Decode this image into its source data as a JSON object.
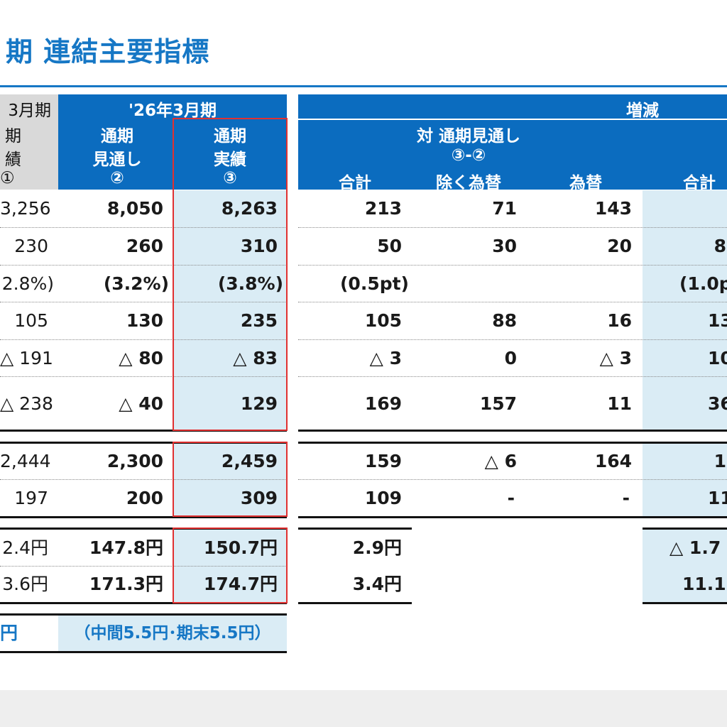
{
  "title": "期 連結主要指標",
  "header": {
    "prev_col": [
      "3月期",
      "期",
      "績",
      "①"
    ],
    "fy26_label": "'26年3月期",
    "forecast_label_1": "通期",
    "forecast_label_2": "見通し",
    "forecast_label_3": "②",
    "actual_label_1": "通期",
    "actual_label_2": "実績",
    "actual_label_3": "③",
    "change_label": "増減",
    "vs_forecast_label": "対 通期見通し",
    "vs_forecast_formula": "③-②",
    "sub_total": "合計",
    "sub_ex_fx": "除く為替",
    "sub_fx": "為替",
    "sub_total_right": "合計"
  },
  "rows": [
    {
      "prev": "3,256",
      "fc": "8,050",
      "act": "8,263",
      "tot": "213",
      "exfx": "71",
      "fx": "143",
      "tot2": ""
    },
    {
      "prev": "230",
      "fc": "260",
      "act": "310",
      "tot": "50",
      "exfx": "30",
      "fx": "20",
      "tot2": "8"
    },
    {
      "prev": "2.8%)",
      "fc": "(3.2%)",
      "act": "(3.8%)",
      "tot": "(0.5pt)",
      "exfx": "",
      "fx": "",
      "tot2": "(1.0p"
    },
    {
      "prev": "105",
      "fc": "130",
      "act": "235",
      "tot": "105",
      "exfx": "88",
      "fx": "16",
      "tot2": "13"
    },
    {
      "prev": "△ 191",
      "fc": "△ 80",
      "act": "△ 83",
      "tot": "△ 3",
      "exfx": "0",
      "fx": "△ 3",
      "tot2": "10"
    },
    {
      "prev": "△ 238",
      "fc": "△ 40",
      "act": "129",
      "tot": "169",
      "exfx": "157",
      "fx": "11",
      "tot2": "36"
    },
    {
      "prev": "2,444",
      "fc": "2,300",
      "act": "2,459",
      "tot": "159",
      "exfx": "△ 6",
      "fx": "164",
      "tot2": "1"
    },
    {
      "prev": "197",
      "fc": "200",
      "act": "309",
      "tot": "109",
      "exfx": "-",
      "fx": "-",
      "tot2": "11"
    },
    {
      "prev": "2.4円",
      "fc": "147.8円",
      "act": "150.7円",
      "tot": "2.9円",
      "exfx": "",
      "fx": "",
      "tot2": "△ 1.7"
    },
    {
      "prev": "3.6円",
      "fc": "171.3円",
      "act": "174.7円",
      "tot": "3.4円",
      "exfx": "",
      "fx": "",
      "tot2": "11.1"
    }
  ],
  "dividend": {
    "prev": "円",
    "current": "（中間5.5円･期末5.5円）"
  },
  "colors": {
    "accent": "#1677c5",
    "header_bg": "#0b6cbf",
    "shade": "#daecf5",
    "highlight_border": "#e03131"
  }
}
